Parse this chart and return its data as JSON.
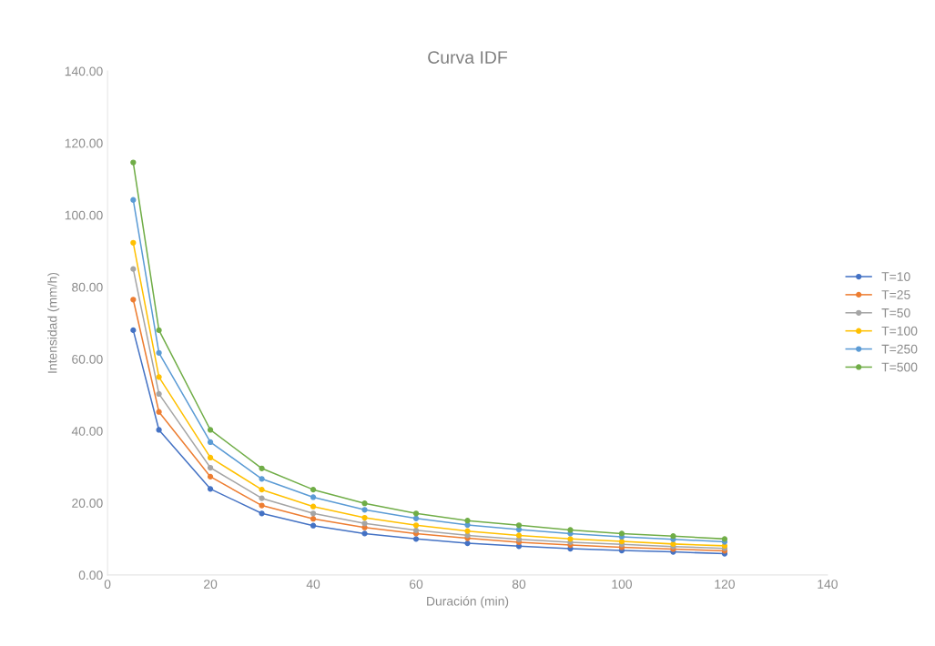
{
  "chart_data": {
    "type": "line",
    "title": "Curva IDF",
    "xlabel": "Duración (min)",
    "ylabel": "Intensidad (mm/h)",
    "x": [
      5,
      10,
      20,
      30,
      40,
      50,
      60,
      70,
      80,
      90,
      100,
      110,
      120
    ],
    "series": [
      {
        "name": "T=10",
        "color": "#4472c4",
        "values": [
          68.0,
          40.3,
          23.9,
          17.1,
          13.7,
          11.5,
          10.0,
          8.8,
          8.0,
          7.3,
          6.8,
          6.4,
          5.9
        ]
      },
      {
        "name": "T=25",
        "color": "#ed7d31",
        "values": [
          76.5,
          45.3,
          27.3,
          19.3,
          15.6,
          13.2,
          11.5,
          10.2,
          9.1,
          8.3,
          7.7,
          7.2,
          6.7
        ]
      },
      {
        "name": "T=50",
        "color": "#a5a5a5",
        "values": [
          85.0,
          50.3,
          29.8,
          21.3,
          17.1,
          14.3,
          12.4,
          11.0,
          9.9,
          9.1,
          8.5,
          7.9,
          7.4
        ]
      },
      {
        "name": "T=100",
        "color": "#ffc000",
        "values": [
          92.3,
          55.0,
          32.6,
          23.7,
          19.0,
          15.9,
          13.8,
          12.2,
          11.0,
          10.0,
          9.3,
          8.6,
          8.1
        ]
      },
      {
        "name": "T=250",
        "color": "#5b9bd5",
        "values": [
          104.2,
          61.7,
          36.9,
          26.7,
          21.6,
          18.1,
          15.7,
          13.9,
          12.6,
          11.5,
          10.6,
          9.9,
          9.2
        ]
      },
      {
        "name": "T=500",
        "color": "#70ad47",
        "values": [
          114.6,
          68.0,
          40.3,
          29.6,
          23.7,
          19.9,
          17.1,
          15.1,
          13.8,
          12.5,
          11.5,
          10.8,
          10.0
        ]
      }
    ],
    "xlim": [
      0,
      140
    ],
    "xticks": [
      0,
      20,
      40,
      60,
      80,
      100,
      120,
      140
    ],
    "ylim": [
      0,
      140
    ],
    "yticks": [
      {
        "value": 0,
        "label": "0.00"
      },
      {
        "value": 20,
        "label": "20.00"
      },
      {
        "value": 40,
        "label": "40.00"
      },
      {
        "value": 60,
        "label": "60.00"
      },
      {
        "value": 80,
        "label": "80.00"
      },
      {
        "value": 100,
        "label": "100.00"
      },
      {
        "value": 120,
        "label": "120.00"
      },
      {
        "value": 140,
        "label": "140.00"
      }
    ],
    "grid": false,
    "legend": "right",
    "marker": "circle",
    "line_style": "solid"
  }
}
